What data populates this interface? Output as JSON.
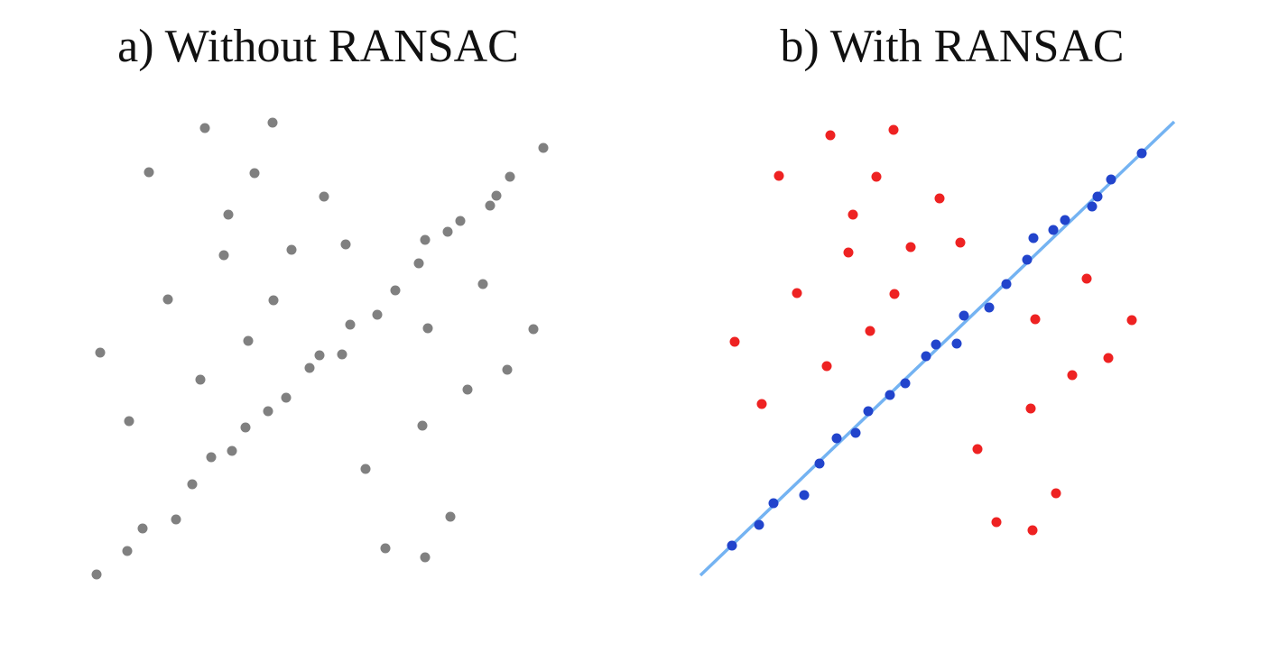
{
  "panels": [
    {
      "title": "a) Without RANSAC",
      "point_color": "#808080",
      "points": [
        [
          107,
          637
        ],
        [
          141,
          611
        ],
        [
          158,
          586
        ],
        [
          195,
          576
        ],
        [
          213,
          537
        ],
        [
          234,
          507
        ],
        [
          257,
          500
        ],
        [
          272,
          474
        ],
        [
          297,
          456
        ],
        [
          317,
          441
        ],
        [
          343,
          408
        ],
        [
          354,
          394
        ],
        [
          379,
          393
        ],
        [
          388,
          360
        ],
        [
          418,
          349
        ],
        [
          438,
          322
        ],
        [
          464,
          292
        ],
        [
          471,
          266
        ],
        [
          496,
          257
        ],
        [
          510,
          245
        ],
        [
          543,
          228
        ],
        [
          550,
          217
        ],
        [
          565,
          196
        ],
        [
          602,
          164
        ],
        [
          111,
          391
        ],
        [
          143,
          467
        ],
        [
          165,
          191
        ],
        [
          186,
          332
        ],
        [
          227,
          142
        ],
        [
          222,
          421
        ],
        [
          253,
          238
        ],
        [
          248,
          283
        ],
        [
          275,
          378
        ],
        [
          282,
          192
        ],
        [
          302,
          136
        ],
        [
          303,
          333
        ],
        [
          323,
          277
        ],
        [
          359,
          218
        ],
        [
          383,
          271
        ],
        [
          405,
          520
        ],
        [
          427,
          608
        ],
        [
          471,
          618
        ],
        [
          468,
          472
        ],
        [
          474,
          364
        ],
        [
          499,
          573
        ],
        [
          518,
          432
        ],
        [
          535,
          315
        ],
        [
          562,
          410
        ],
        [
          591,
          365
        ]
      ]
    },
    {
      "title": "b) With RANSAC",
      "inlier_color": "#2244cc",
      "outlier_color": "#ee2222",
      "line_color": "#74b3f2",
      "fit_line": [
        [
          776,
          638
        ],
        [
          1301,
          135
        ]
      ],
      "inliers": [
        [
          811,
          605
        ],
        [
          841,
          582
        ],
        [
          857,
          558
        ],
        [
          891,
          549
        ],
        [
          908,
          514
        ],
        [
          927,
          486
        ],
        [
          948,
          480
        ],
        [
          962,
          456
        ],
        [
          986,
          438
        ],
        [
          1003,
          425
        ],
        [
          1026,
          395
        ],
        [
          1037,
          382
        ],
        [
          1060,
          381
        ],
        [
          1068,
          350
        ],
        [
          1096,
          341
        ],
        [
          1115,
          315
        ],
        [
          1138,
          288
        ],
        [
          1145,
          264
        ],
        [
          1167,
          255
        ],
        [
          1180,
          244
        ],
        [
          1210,
          229
        ],
        [
          1216,
          218
        ],
        [
          1231,
          199
        ],
        [
          1265,
          170
        ]
      ],
      "outliers": [
        [
          814,
          379
        ],
        [
          844,
          448
        ],
        [
          863,
          195
        ],
        [
          883,
          325
        ],
        [
          920,
          150
        ],
        [
          916,
          406
        ],
        [
          945,
          238
        ],
        [
          940,
          280
        ],
        [
          964,
          367
        ],
        [
          971,
          196
        ],
        [
          990,
          144
        ],
        [
          991,
          326
        ],
        [
          1009,
          274
        ],
        [
          1041,
          220
        ],
        [
          1064,
          269
        ],
        [
          1083,
          498
        ],
        [
          1104,
          579
        ],
        [
          1144,
          588
        ],
        [
          1142,
          453
        ],
        [
          1147,
          354
        ],
        [
          1170,
          547
        ],
        [
          1188,
          416
        ],
        [
          1204,
          309
        ],
        [
          1228,
          397
        ],
        [
          1254,
          355
        ]
      ]
    }
  ]
}
